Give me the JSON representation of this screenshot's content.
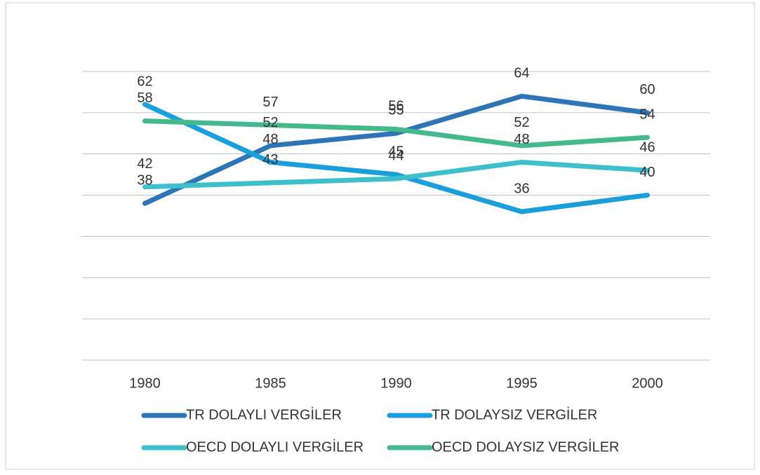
{
  "chart_data": {
    "type": "line",
    "categories": [
      "1980",
      "1985",
      "1990",
      "1995",
      "2000"
    ],
    "series": [
      {
        "name": "TR DOLAYLI VERGİLER",
        "color": "#2e75b6",
        "values": [
          38,
          52,
          55,
          64,
          60
        ]
      },
      {
        "name": "TR DOLAYSIZ VERGİLER",
        "color": "#1a9fdc",
        "values": [
          62,
          48,
          45,
          36,
          40
        ]
      },
      {
        "name": "OECD DOLAYLI VERGİLER",
        "color": "#3ec0cc",
        "values": [
          42,
          43,
          44,
          48,
          46
        ]
      },
      {
        "name": "OECD DOLAYSIZ VERGİLER",
        "color": "#45b98c",
        "values": [
          58,
          57,
          56,
          52,
          54
        ]
      }
    ],
    "ylim": [
      0,
      70
    ],
    "yticks": [
      0,
      10,
      20,
      30,
      40,
      50,
      60,
      70
    ],
    "grid": true
  }
}
